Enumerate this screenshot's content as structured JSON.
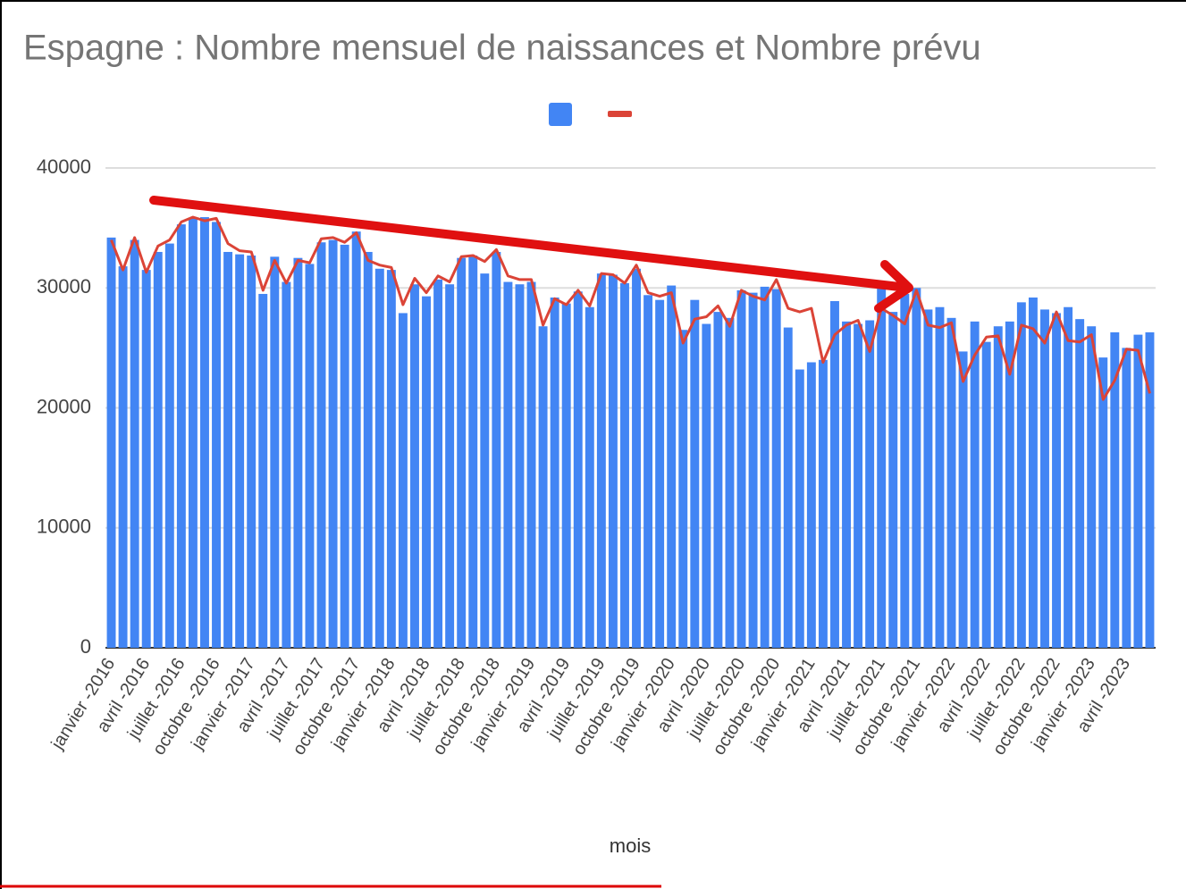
{
  "chart_data": {
    "type": "bar_line",
    "title": "Espagne : Nombre mensuel de naissances et Nombre prévu",
    "x_label": "mois",
    "categories": [
      "janvier -2016",
      null,
      null,
      "avril -2016",
      null,
      null,
      "juillet -2016",
      null,
      null,
      "octobre -2016",
      null,
      null,
      "janvier -2017",
      null,
      null,
      "avril -2017",
      null,
      null,
      "juillet -2017",
      null,
      null,
      "octobre -2017",
      null,
      null,
      "janvier -2018",
      null,
      null,
      "avril -2018",
      null,
      null,
      "juillet -2018",
      null,
      null,
      "octobre -2018",
      null,
      null,
      "janvier -2019",
      null,
      null,
      "avril -2019",
      null,
      null,
      "juillet -2019",
      null,
      null,
      "octobre -2019",
      null,
      null,
      "janvier -2020",
      null,
      null,
      "avril -2020",
      null,
      null,
      "juillet -2020",
      null,
      null,
      "octobre -2020",
      null,
      null,
      "janvier -2021",
      null,
      null,
      "avril -2021",
      null,
      null,
      "juillet -2021",
      null,
      null,
      "octobre -2021",
      null,
      null,
      "janvier -2022",
      null,
      null,
      "avril -2022",
      null,
      null,
      "juillet -2022",
      null,
      null,
      "octobre -2022",
      null,
      null,
      "janvier -2023",
      null,
      null,
      "avril -2023",
      null,
      null
    ],
    "series": [
      {
        "color": "#4285f4",
        "kind": "bar",
        "values": [
          34200,
          31800,
          34000,
          31500,
          33000,
          33700,
          35300,
          35800,
          35900,
          35500,
          33000,
          32800,
          32700,
          29500,
          32600,
          30500,
          32500,
          32000,
          33800,
          34000,
          33600,
          34700,
          33000,
          31600,
          31500,
          27900,
          30300,
          29300,
          30700,
          30300,
          32500,
          32700,
          31200,
          33000,
          30500,
          30300,
          30500,
          26800,
          29200,
          28700,
          29700,
          28400,
          31200,
          31100,
          30400,
          31600,
          29400,
          29000,
          30200,
          26500,
          29000,
          27000,
          28000,
          27500,
          29800,
          29600,
          30100,
          29900,
          26700,
          23200,
          23800,
          24000,
          28900,
          27200,
          27000,
          27300,
          30000,
          28000,
          29500,
          30000,
          28200,
          28400,
          27500,
          24700,
          27200,
          25500,
          26800,
          27200,
          28800,
          29200,
          28200,
          27900,
          28400,
          27400,
          26800,
          24200,
          26300,
          25000,
          26100,
          26300
        ]
      },
      {
        "color": "#db4437",
        "kind": "line",
        "values": [
          34000,
          31500,
          34200,
          31300,
          33500,
          34000,
          35500,
          35900,
          35600,
          35800,
          33700,
          33100,
          33000,
          29800,
          32300,
          30400,
          32300,
          32100,
          34100,
          34200,
          33800,
          34600,
          32300,
          31900,
          31700,
          28600,
          30800,
          29600,
          31000,
          30500,
          32600,
          32700,
          32200,
          33200,
          31000,
          30700,
          30700,
          26900,
          29100,
          28600,
          29800,
          28500,
          31200,
          31100,
          30400,
          31900,
          29600,
          29300,
          29600,
          25400,
          27400,
          27600,
          28500,
          26800,
          29800,
          29300,
          29000,
          30700,
          28300,
          28000,
          28300,
          23800,
          26100,
          26900,
          27300,
          24700,
          28300,
          27700,
          27000,
          29800,
          26900,
          26700,
          27100,
          22200,
          24400,
          25900,
          26000,
          22800,
          26900,
          26600,
          25400,
          28000,
          25600,
          25500,
          26100,
          20700,
          22300,
          24900,
          24800,
          21200
        ]
      }
    ],
    "ylim": [
      0,
      40000
    ],
    "yticks": [
      0,
      10000,
      20000,
      30000,
      40000
    ],
    "grid": true,
    "legend": "top"
  }
}
